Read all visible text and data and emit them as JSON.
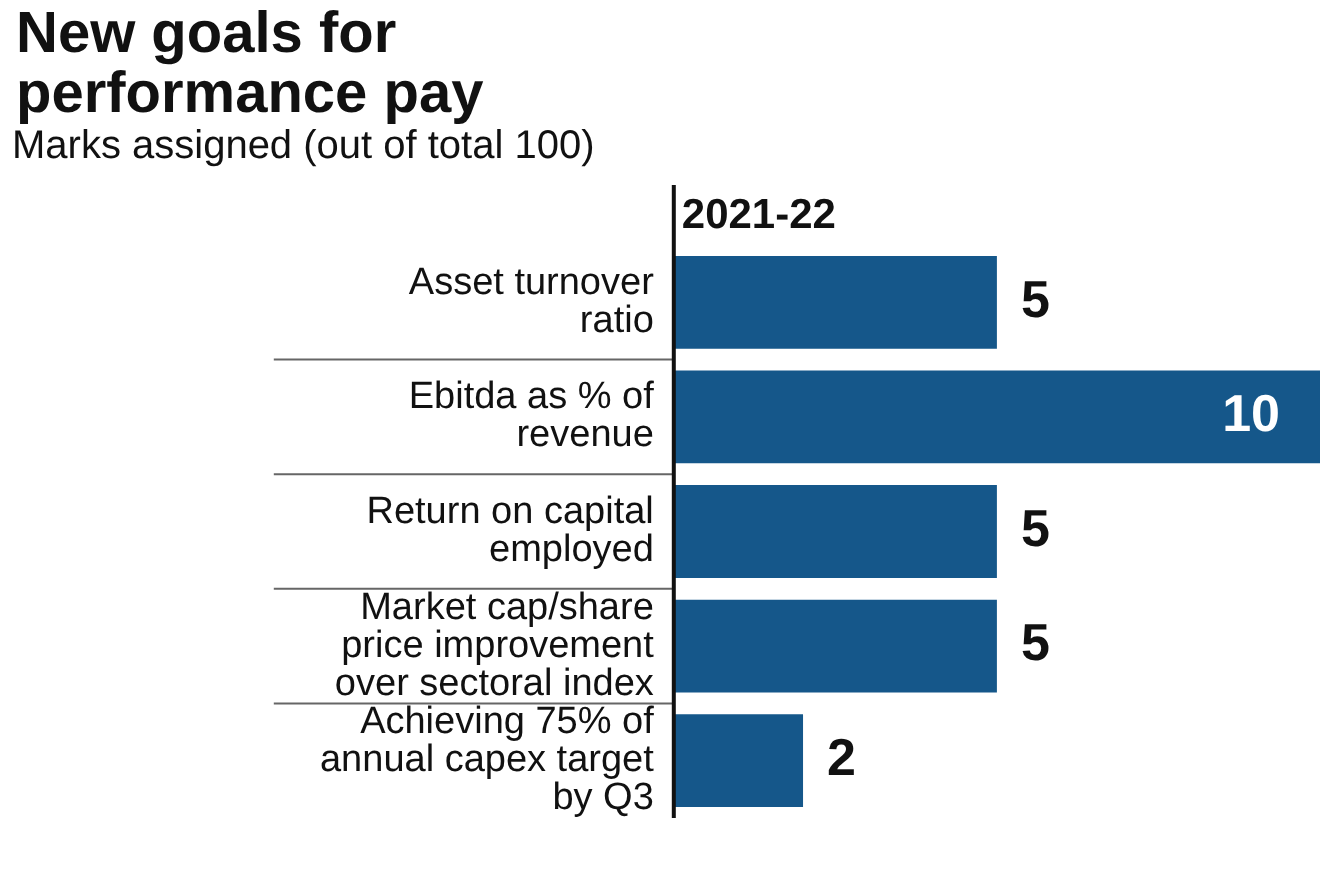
{
  "chart_data": {
    "type": "bar",
    "orientation": "horizontal",
    "title": "New goals for performance pay",
    "subtitle": "Marks assigned (out of total 100)",
    "annotations": [
      "2021-22"
    ],
    "categories": [
      "Asset turnover ratio",
      "Ebitda as % of revenue",
      "Return on capital employed",
      "Market cap/share price improvement over sectoral index",
      "Achieving 75% of annual capex target by Q3"
    ],
    "values": [
      5,
      10,
      5,
      5,
      2
    ],
    "color": "#15578a",
    "data_labels": true,
    "grid": false,
    "legend": false
  }
}
